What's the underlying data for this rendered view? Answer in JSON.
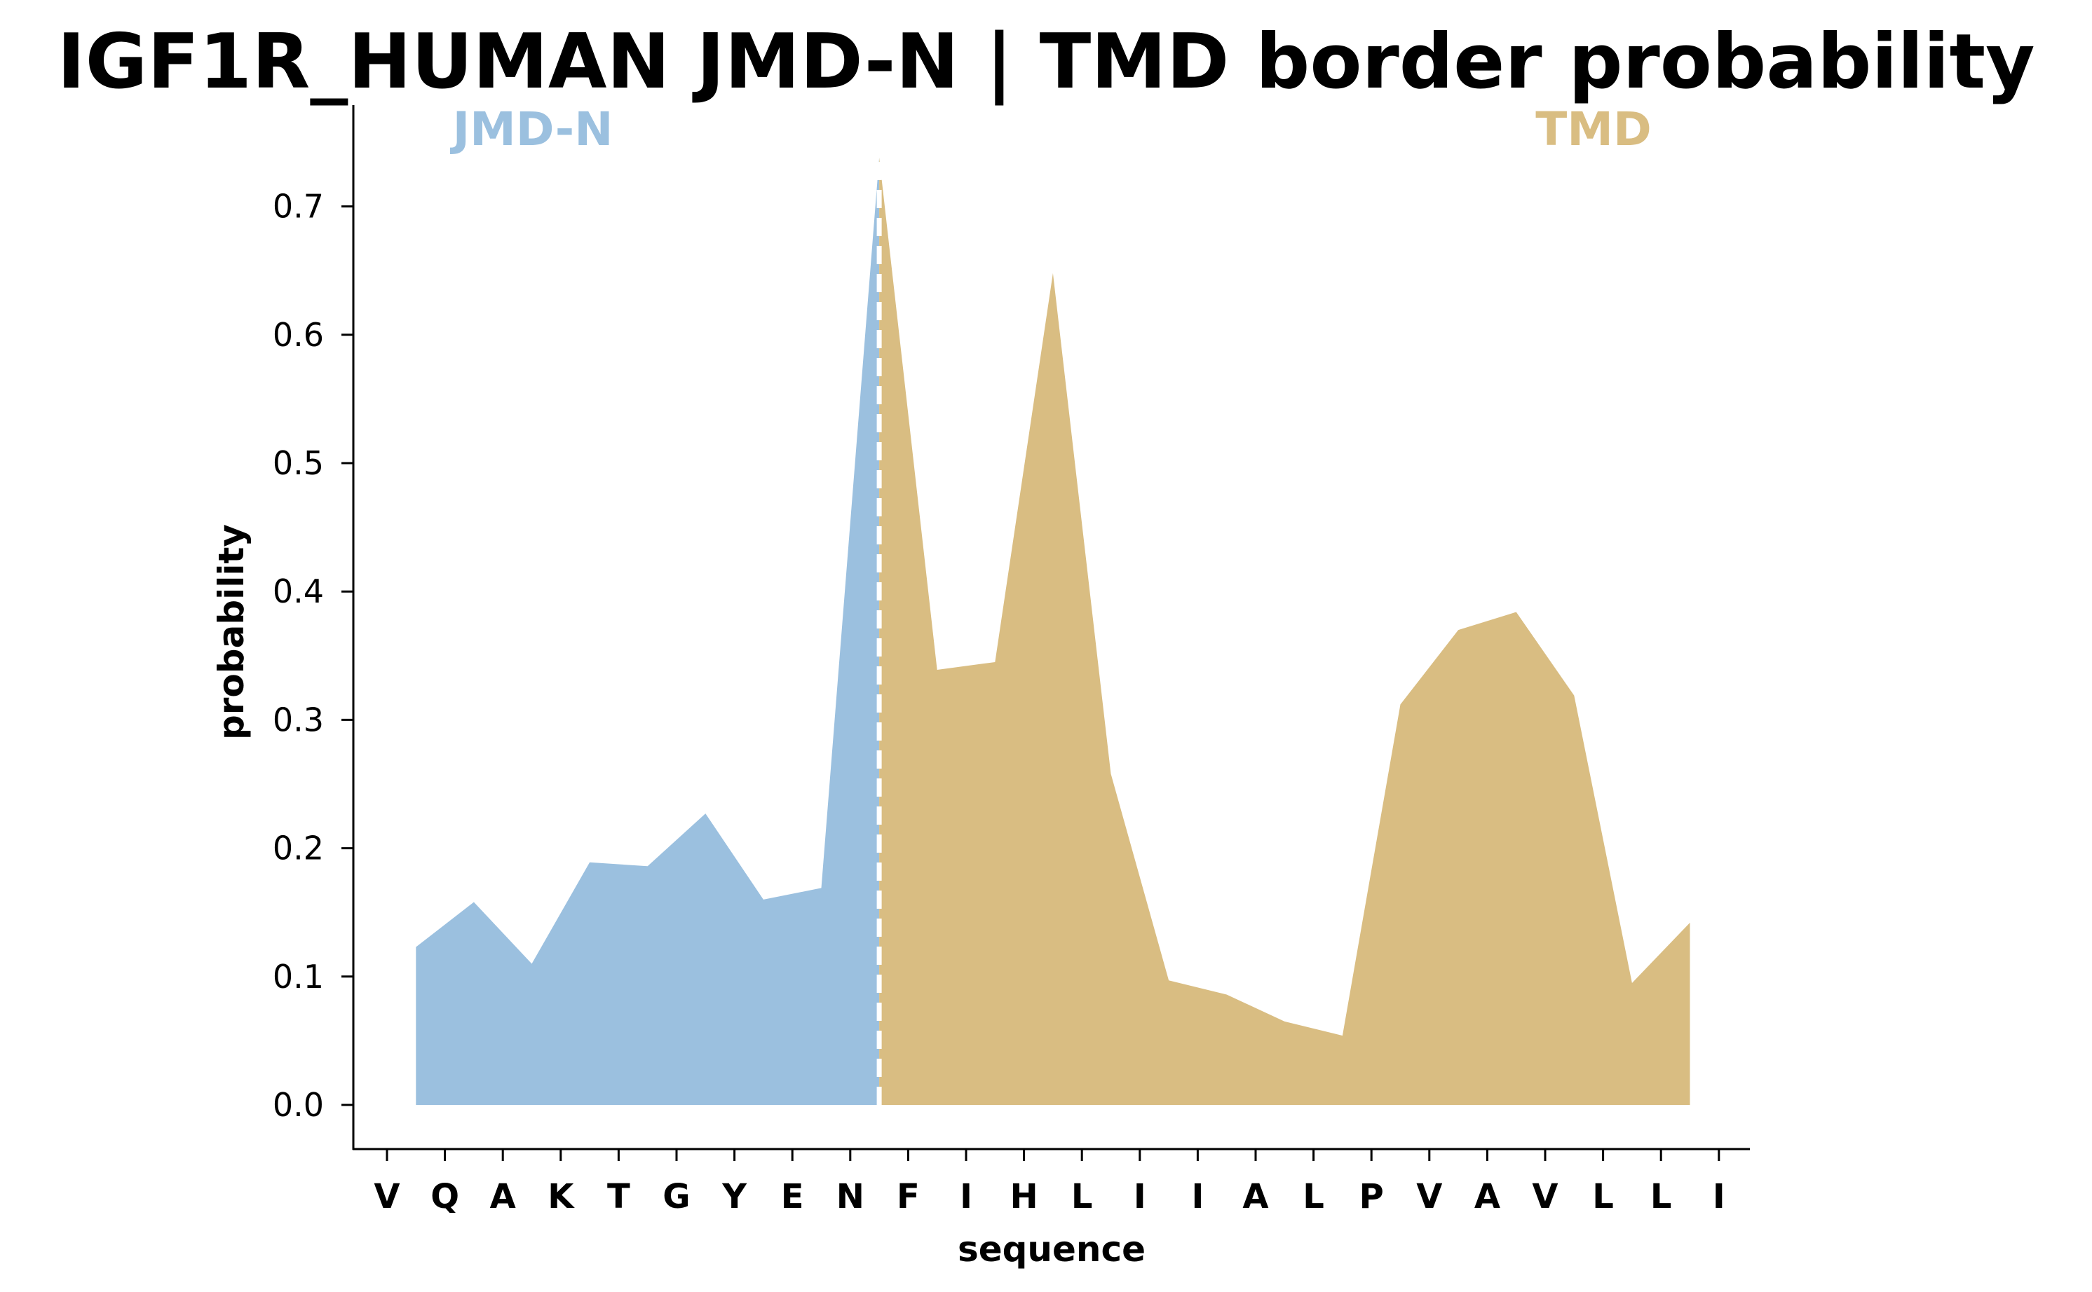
{
  "chart_data": {
    "type": "area",
    "title": "IGF1R_HUMAN JMD-N | TMD border probability",
    "xlabel": "sequence",
    "ylabel": "probability",
    "ylim": [
      -0.035,
      0.78
    ],
    "yticks": [
      0.0,
      0.1,
      0.2,
      0.3,
      0.4,
      0.5,
      0.6,
      0.7
    ],
    "ytick_labels": [
      "0.0",
      "0.1",
      "0.2",
      "0.3",
      "0.4",
      "0.5",
      "0.6",
      "0.7"
    ],
    "xtick_labels": [
      "V",
      "Q",
      "A",
      "K",
      "T",
      "G",
      "Y",
      "E",
      "N",
      "F",
      "I",
      "H",
      "L",
      "I",
      "I",
      "A",
      "L",
      "P",
      "V",
      "A",
      "V",
      "L",
      "L",
      "I"
    ],
    "x_values": [
      0.5,
      1.5,
      2.5,
      3.5,
      4.5,
      5.5,
      6.5,
      7.5,
      8.5,
      9.5,
      10.5,
      11.5,
      12.5,
      13.5,
      14.5,
      15.5,
      16.5,
      17.5,
      18.5,
      19.5,
      20.5,
      21.5,
      22.5
    ],
    "values": [
      0.123,
      0.158,
      0.11,
      0.189,
      0.186,
      0.227,
      0.16,
      0.169,
      0.738,
      0.339,
      0.345,
      0.648,
      0.258,
      0.097,
      0.086,
      0.065,
      0.054,
      0.312,
      0.37,
      0.384,
      0.319,
      0.095,
      0.142
    ],
    "border_x": 8.5,
    "regions": [
      {
        "name": "JMD-N",
        "color": "#9bc0df",
        "from": 0.5,
        "to": 8.5
      },
      {
        "name": "TMD",
        "color": "#d9bd82",
        "from": 8.5,
        "to": 22.5
      }
    ],
    "border_line_color": "#ffffff",
    "grid": false,
    "legend": "none"
  }
}
